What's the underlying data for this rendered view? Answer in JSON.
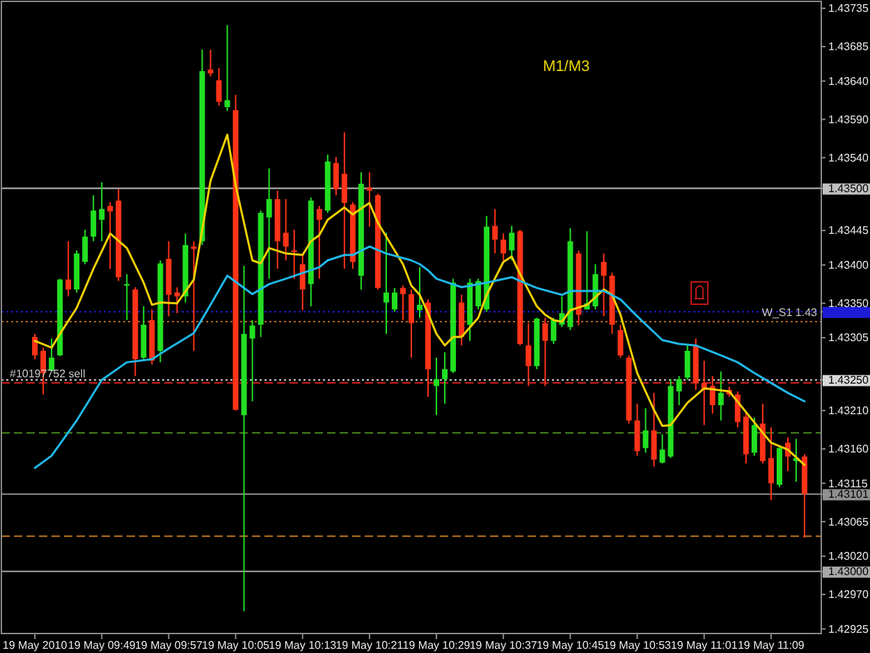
{
  "chart_data": {
    "type": "candlestick",
    "x": [
      "2010-05-19T09:41",
      "2010-05-19T09:42",
      "2010-05-19T09:43",
      "2010-05-19T09:44",
      "2010-05-19T09:45",
      "2010-05-19T09:46",
      "2010-05-19T09:47",
      "2010-05-19T09:48",
      "2010-05-19T09:49",
      "2010-05-19T09:50",
      "2010-05-19T09:51",
      "2010-05-19T09:52",
      "2010-05-19T09:53",
      "2010-05-19T09:54",
      "2010-05-19T09:55",
      "2010-05-19T09:56",
      "2010-05-19T09:57",
      "2010-05-19T09:58",
      "2010-05-19T09:59",
      "2010-05-19T10:00",
      "2010-05-19T10:01",
      "2010-05-19T10:02",
      "2010-05-19T10:03",
      "2010-05-19T10:04",
      "2010-05-19T10:05",
      "2010-05-19T10:06",
      "2010-05-19T10:07",
      "2010-05-19T10:08",
      "2010-05-19T10:09",
      "2010-05-19T10:10",
      "2010-05-19T10:11",
      "2010-05-19T10:12",
      "2010-05-19T10:13",
      "2010-05-19T10:14",
      "2010-05-19T10:15",
      "2010-05-19T10:16",
      "2010-05-19T10:17",
      "2010-05-19T10:18",
      "2010-05-19T10:19",
      "2010-05-19T10:20",
      "2010-05-19T10:21",
      "2010-05-19T10:22",
      "2010-05-19T10:23",
      "2010-05-19T10:24",
      "2010-05-19T10:25",
      "2010-05-19T10:26",
      "2010-05-19T10:27",
      "2010-05-19T10:28",
      "2010-05-19T10:29",
      "2010-05-19T10:30",
      "2010-05-19T10:31",
      "2010-05-19T10:32",
      "2010-05-19T10:33",
      "2010-05-19T10:34",
      "2010-05-19T10:35",
      "2010-05-19T10:36",
      "2010-05-19T10:37",
      "2010-05-19T10:38",
      "2010-05-19T10:39",
      "2010-05-19T10:40",
      "2010-05-19T10:41",
      "2010-05-19T10:42",
      "2010-05-19T10:43",
      "2010-05-19T10:44",
      "2010-05-19T10:45",
      "2010-05-19T10:46",
      "2010-05-19T10:47",
      "2010-05-19T10:48",
      "2010-05-19T10:49",
      "2010-05-19T10:50",
      "2010-05-19T10:51",
      "2010-05-19T10:52",
      "2010-05-19T10:53",
      "2010-05-19T10:54",
      "2010-05-19T10:55",
      "2010-05-19T10:56",
      "2010-05-19T10:57",
      "2010-05-19T10:58",
      "2010-05-19T10:59",
      "2010-05-19T11:00",
      "2010-05-19T11:01",
      "2010-05-19T11:02",
      "2010-05-19T11:03",
      "2010-05-19T11:04",
      "2010-05-19T11:05",
      "2010-05-19T11:06",
      "2010-05-19T11:07",
      "2010-05-19T11:08",
      "2010-05-19T11:09",
      "2010-05-19T11:10",
      "2010-05-19T11:11",
      "2010-05-19T11:12",
      "2010-05-19T11:13"
    ],
    "ohlc": [
      [
        1.43306,
        1.4331,
        1.43277,
        1.43282
      ],
      [
        1.43288,
        1.43292,
        1.43231,
        1.43259
      ],
      [
        1.43262,
        1.43304,
        1.43261,
        1.43279
      ],
      [
        1.43282,
        1.43382,
        1.43281,
        1.43381
      ],
      [
        1.43381,
        1.43431,
        1.43359,
        1.43368
      ],
      [
        1.43368,
        1.43419,
        1.43364,
        1.43415
      ],
      [
        1.43404,
        1.43446,
        1.43401,
        1.43437
      ],
      [
        1.43437,
        1.43491,
        1.43431,
        1.43471
      ],
      [
        1.43459,
        1.43508,
        1.43431,
        1.43473
      ],
      [
        1.43477,
        1.43482,
        1.43395,
        1.4347
      ],
      [
        1.43484,
        1.43499,
        1.43379,
        1.43384
      ],
      [
        1.43373,
        1.43388,
        1.43328,
        1.43375
      ],
      [
        1.43368,
        1.43371,
        1.43255,
        1.43277
      ],
      [
        1.43279,
        1.43346,
        1.43277,
        1.43322
      ],
      [
        1.43328,
        1.43342,
        1.4327,
        1.43275
      ],
      [
        1.43288,
        1.43406,
        1.43273,
        1.43402
      ],
      [
        1.43408,
        1.43431,
        1.43333,
        1.43361
      ],
      [
        1.43364,
        1.43371,
        1.43337,
        1.43359
      ],
      [
        1.43359,
        1.43441,
        1.43351,
        1.43426
      ],
      [
        1.43424,
        1.43431,
        1.43288,
        1.43421
      ],
      [
        1.43431,
        1.43681,
        1.43426,
        1.43653
      ],
      [
        1.43655,
        1.43681,
        1.43646,
        1.4365
      ],
      [
        1.43641,
        1.43657,
        1.43608,
        1.43613
      ],
      [
        1.43606,
        1.43713,
        1.43601,
        1.43615
      ],
      [
        1.43602,
        1.43622,
        1.4321,
        1.43211
      ],
      [
        1.43204,
        1.43399,
        1.42948,
        1.4331
      ],
      [
        1.43304,
        1.43328,
        1.43222,
        1.43321
      ],
      [
        1.43322,
        1.43471,
        1.43306,
        1.43468
      ],
      [
        1.43462,
        1.43526,
        1.43382,
        1.43486
      ],
      [
        1.43486,
        1.43497,
        1.43395,
        1.43431
      ],
      [
        1.43442,
        1.43486,
        1.43406,
        1.43424
      ],
      [
        1.43419,
        1.43446,
        1.43382,
        1.43417
      ],
      [
        1.43401,
        1.43415,
        1.43341,
        1.43368
      ],
      [
        1.43375,
        1.43488,
        1.43346,
        1.43484
      ],
      [
        1.43473,
        1.43477,
        1.43382,
        1.43459
      ],
      [
        1.43471,
        1.43544,
        1.43468,
        1.43535
      ],
      [
        1.43533,
        1.43541,
        1.43491,
        1.43499
      ],
      [
        1.43519,
        1.43573,
        1.43395,
        1.43481
      ],
      [
        1.43479,
        1.43482,
        1.43395,
        1.43404
      ],
      [
        1.43386,
        1.43521,
        1.43368,
        1.43506
      ],
      [
        1.43501,
        1.43521,
        1.4345,
        1.43497
      ],
      [
        1.43491,
        1.43493,
        1.43368,
        1.4337
      ],
      [
        1.43351,
        1.43442,
        1.4331,
        1.43364
      ],
      [
        1.43342,
        1.4337,
        1.43339,
        1.43364
      ],
      [
        1.4337,
        1.43373,
        1.43328,
        1.43362
      ],
      [
        1.43362,
        1.43368,
        1.43279,
        1.43324
      ],
      [
        1.43341,
        1.43397,
        1.43331,
        1.43348
      ],
      [
        1.43351,
        1.43355,
        1.43228,
        1.43264
      ],
      [
        1.43242,
        1.43279,
        1.43204,
        1.43251
      ],
      [
        1.43251,
        1.43286,
        1.43219,
        1.43264
      ],
      [
        1.43261,
        1.43382,
        1.43259,
        1.43377
      ],
      [
        1.43351,
        1.43361,
        1.43295,
        1.43306
      ],
      [
        1.43322,
        1.43382,
        1.43301,
        1.43377
      ],
      [
        1.43346,
        1.43382,
        1.43342,
        1.43379
      ],
      [
        1.43342,
        1.43464,
        1.43339,
        1.4345
      ],
      [
        1.43451,
        1.43473,
        1.43415,
        1.43433
      ],
      [
        1.43433,
        1.43441,
        1.43406,
        1.43415
      ],
      [
        1.43419,
        1.43451,
        1.43406,
        1.43442
      ],
      [
        1.43444,
        1.43446,
        1.43295,
        1.43297
      ],
      [
        1.43295,
        1.43324,
        1.43242,
        1.43268
      ],
      [
        1.43268,
        1.43331,
        1.43264,
        1.4333
      ],
      [
        1.43324,
        1.43331,
        1.43242,
        1.43301
      ],
      [
        1.43301,
        1.43331,
        1.43297,
        1.43328
      ],
      [
        1.43322,
        1.43359,
        1.43319,
        1.43337
      ],
      [
        1.43319,
        1.43448,
        1.43315,
        1.43431
      ],
      [
        1.43415,
        1.43419,
        1.43321,
        1.43335
      ],
      [
        1.43342,
        1.43444,
        1.43342,
        1.4335
      ],
      [
        1.43346,
        1.43401,
        1.43342,
        1.43388
      ],
      [
        1.43404,
        1.43415,
        1.43333,
        1.43386
      ],
      [
        1.43386,
        1.4339,
        1.4331,
        1.43322
      ],
      [
        1.43315,
        1.43322,
        1.43279,
        1.43282
      ],
      [
        1.43279,
        1.43282,
        1.43193,
        1.43197
      ],
      [
        1.43197,
        1.43219,
        1.43151,
        1.43157
      ],
      [
        1.43161,
        1.43213,
        1.43155,
        1.43184
      ],
      [
        1.43184,
        1.43233,
        1.43137,
        1.43146
      ],
      [
        1.43142,
        1.43179,
        1.43141,
        1.43159
      ],
      [
        1.4315,
        1.43251,
        1.43148,
        1.43242
      ],
      [
        1.43235,
        1.43255,
        1.43217,
        1.43251
      ],
      [
        1.43253,
        1.43297,
        1.4325,
        1.43288
      ],
      [
        1.43295,
        1.43304,
        1.43237,
        1.43246
      ],
      [
        1.43246,
        1.43275,
        1.43191,
        1.43237
      ],
      [
        1.43242,
        1.43255,
        1.43206,
        1.43217
      ],
      [
        1.43217,
        1.43261,
        1.43197,
        1.43233
      ],
      [
        1.43237,
        1.43241,
        1.43228,
        1.43231
      ],
      [
        1.43231,
        1.43235,
        1.43188,
        1.43195
      ],
      [
        1.43202,
        1.43208,
        1.43141,
        1.43153
      ],
      [
        1.43155,
        1.43201,
        1.43151,
        1.43191
      ],
      [
        1.43193,
        1.43219,
        1.43141,
        1.43144
      ],
      [
        1.43148,
        1.43188,
        1.43093,
        1.43115
      ],
      [
        1.43113,
        1.43164,
        1.4311,
        1.43161
      ],
      [
        1.43168,
        1.43175,
        1.43131,
        1.4315
      ],
      [
        1.43144,
        1.43173,
        1.43117,
        1.43148
      ],
      [
        1.4315,
        1.43153,
        1.43044,
        1.43101
      ]
    ],
    "colors": [
      "#ff3318",
      "#ff3318",
      "#22e022",
      "#22e022",
      "#ff3318",
      "#22e022",
      "#22e022",
      "#22e022",
      "#22e022",
      "#ff3318",
      "#ff3318",
      "#22e022",
      "#ff3318",
      "#22e022",
      "#ff3318",
      "#22e022",
      "#ff3318",
      "#ff3318",
      "#22e022",
      "#ff3318",
      "#22e022",
      "#ff3318",
      "#ff3318",
      "#22e022",
      "#ff3318",
      "#22e022",
      "#22e022",
      "#22e022",
      "#22e022",
      "#ff3318",
      "#ff3318",
      "#ff3318",
      "#ff3318",
      "#22e022",
      "#ff3318",
      "#22e022",
      "#ff3318",
      "#ff3318",
      "#ff3318",
      "#22e022",
      "#ff3318",
      "#ff3318",
      "#22e022",
      "#22e022",
      "#ff3318",
      "#ff3318",
      "#22e022",
      "#ff3318",
      "#22e022",
      "#22e022",
      "#22e022",
      "#ff3318",
      "#22e022",
      "#22e022",
      "#22e022",
      "#ff3318",
      "#ff3318",
      "#22e022",
      "#ff3318",
      "#ff3318",
      "#22e022",
      "#ff3318",
      "#22e022",
      "#22e022",
      "#22e022",
      "#ff3318",
      "#22e022",
      "#22e022",
      "#ff3318",
      "#ff3318",
      "#ff3318",
      "#ff3318",
      "#ff3318",
      "#22e022",
      "#ff3318",
      "#22e022",
      "#22e022",
      "#22e022",
      "#22e022",
      "#ff3318",
      "#ff3318",
      "#ff3318",
      "#22e022",
      "#ff3318",
      "#ff3318",
      "#ff3318",
      "#22e022",
      "#ff3318",
      "#ff3318",
      "#22e022",
      "#ff3318",
      "#22e022",
      "#ff3318"
    ],
    "series": [
      {
        "type": "line",
        "color": "#f0d000",
        "x": [
          "2010-05-19T09:41",
          "2010-05-19T09:43",
          "2010-05-19T09:44",
          "2010-05-19T09:46",
          "2010-05-19T09:48",
          "2010-05-19T09:50",
          "2010-05-19T09:52",
          "2010-05-19T09:54",
          "2010-05-19T09:55",
          "2010-05-19T09:56",
          "2010-05-19T09:58",
          "2010-05-19T10:00",
          "2010-05-19T10:02",
          "2010-05-19T10:04",
          "2010-05-19T10:05",
          "2010-05-19T10:07",
          "2010-05-19T10:08",
          "2010-05-19T10:09",
          "2010-05-19T10:11",
          "2010-05-19T10:13",
          "2010-05-19T10:14",
          "2010-05-19T10:15",
          "2010-05-19T10:16",
          "2010-05-19T10:18",
          "2010-05-19T10:19",
          "2010-05-19T10:21",
          "2010-05-19T10:22",
          "2010-05-19T10:24",
          "2010-05-19T10:25",
          "2010-05-19T10:26",
          "2010-05-19T10:27",
          "2010-05-19T10:28",
          "2010-05-19T10:29",
          "2010-05-19T10:30",
          "2010-05-19T10:31",
          "2010-05-19T10:32",
          "2010-05-19T10:34",
          "2010-05-19T10:35",
          "2010-05-19T10:37",
          "2010-05-19T10:38",
          "2010-05-19T10:39",
          "2010-05-19T10:41",
          "2010-05-19T10:42",
          "2010-05-19T10:43",
          "2010-05-19T10:44",
          "2010-05-19T10:45",
          "2010-05-19T10:47",
          "2010-05-19T10:49",
          "2010-05-19T10:50",
          "2010-05-19T10:51",
          "2010-05-19T10:53",
          "2010-05-19T10:55",
          "2010-05-19T10:56",
          "2010-05-19T10:57",
          "2010-05-19T10:59",
          "2010-05-19T11:01",
          "2010-05-19T11:04",
          "2010-05-19T11:06",
          "2010-05-19T11:08",
          "2010-05-19T11:09",
          "2010-05-19T11:11",
          "2010-05-19T11:13"
        ],
        "values": [
          1.43301,
          1.43292,
          1.4331,
          1.43344,
          1.43395,
          1.43441,
          1.43422,
          1.43377,
          1.43348,
          1.43351,
          1.4335,
          1.43381,
          1.4351,
          1.4357,
          1.43504,
          1.43406,
          1.43402,
          1.43422,
          1.43415,
          1.43413,
          1.43431,
          1.43439,
          1.43459,
          1.43475,
          1.43466,
          1.43481,
          1.43455,
          1.43419,
          1.43401,
          1.43373,
          1.43361,
          1.43337,
          1.4331,
          1.43295,
          1.43306,
          1.43306,
          1.43331,
          1.43361,
          1.43404,
          1.43411,
          1.43388,
          1.43346,
          1.43335,
          1.43328,
          1.43326,
          1.43341,
          1.43348,
          1.43368,
          1.43361,
          1.43335,
          1.43259,
          1.43211,
          1.4319,
          1.43191,
          1.4322,
          1.43239,
          1.43235,
          1.43208,
          1.43181,
          1.43168,
          1.43159,
          1.43139
        ]
      },
      {
        "type": "line",
        "color": "#20b8e8",
        "x": [
          "2010-05-19T09:41",
          "2010-05-19T09:43",
          "2010-05-19T09:46",
          "2010-05-19T09:49",
          "2010-05-19T09:52",
          "2010-05-19T09:55",
          "2010-05-19T09:57",
          "2010-05-19T10:00",
          "2010-05-19T10:02",
          "2010-05-19T10:04",
          "2010-05-19T10:07",
          "2010-05-19T10:09",
          "2010-05-19T10:11",
          "2010-05-19T10:15",
          "2010-05-19T10:16",
          "2010-05-19T10:18",
          "2010-05-19T10:19",
          "2010-05-19T10:21",
          "2010-05-19T10:23",
          "2010-05-19T10:26",
          "2010-05-19T10:27",
          "2010-05-19T10:28",
          "2010-05-19T10:29",
          "2010-05-19T10:32",
          "2010-05-19T10:35",
          "2010-05-19T10:38",
          "2010-05-19T10:39",
          "2010-05-19T10:41",
          "2010-05-19T10:44",
          "2010-05-19T10:45",
          "2010-05-19T10:49",
          "2010-05-19T10:51",
          "2010-05-19T10:53",
          "2010-05-19T10:56",
          "2010-05-19T10:58",
          "2010-05-19T11:00",
          "2010-05-19T11:03",
          "2010-05-19T11:05",
          "2010-05-19T11:07",
          "2010-05-19T11:09",
          "2010-05-19T11:11",
          "2010-05-19T11:13"
        ],
        "values": [
          1.43135,
          1.43151,
          1.43197,
          1.4325,
          1.43273,
          1.43277,
          1.43291,
          1.43311,
          1.43348,
          1.43386,
          1.43362,
          1.43375,
          1.43382,
          1.43397,
          1.43406,
          1.43413,
          1.43413,
          1.43424,
          1.43415,
          1.43406,
          1.43401,
          1.43393,
          1.43382,
          1.43371,
          1.43377,
          1.43384,
          1.43379,
          1.4337,
          1.43361,
          1.43366,
          1.43366,
          1.43355,
          1.43333,
          1.43302,
          1.43297,
          1.43295,
          1.43282,
          1.43273,
          1.43259,
          1.43246,
          1.43233,
          1.43222
        ]
      }
    ],
    "xlim": [
      "2010-05-19T09:37",
      "2010-05-19T11:15"
    ],
    "xticks": [
      {
        "value": "2010-05-19T09:41",
        "label": "19 May 2010"
      },
      {
        "value": "2010-05-19T09:49",
        "label": "19 May 09:49"
      },
      {
        "value": "2010-05-19T09:57",
        "label": "19 May 09:57"
      },
      {
        "value": "2010-05-19T10:05",
        "label": "19 May 10:05"
      },
      {
        "value": "2010-05-19T10:13",
        "label": "19 May 10:13"
      },
      {
        "value": "2010-05-19T10:21",
        "label": "19 May 10:21"
      },
      {
        "value": "2010-05-19T10:29",
        "label": "19 May 10:29"
      },
      {
        "value": "2010-05-19T10:37",
        "label": "19 May 10:37"
      },
      {
        "value": "2010-05-19T10:45",
        "label": "19 May 10:45"
      },
      {
        "value": "2010-05-19T10:53",
        "label": "19 May 10:53"
      },
      {
        "value": "2010-05-19T11:01",
        "label": "19 May 11:01"
      },
      {
        "value": "2010-05-19T11:09",
        "label": "19 May 11:09"
      }
    ],
    "ylim": [
      1.42919,
      1.43744
    ],
    "yticks": [
      1.43735,
      1.43685,
      {
        "value": 1.4364,
        "label": "1.43640"
      },
      {
        "value": 1.4359,
        "label": "1.43590"
      },
      {
        "value": 1.4354,
        "label": "1.43540"
      },
      {
        "value": 1.435,
        "label": "1.43500"
      },
      1.43445,
      {
        "value": 1.434,
        "label": "1.43400"
      },
      {
        "value": 1.4335,
        "label": "1.43350"
      },
      {
        "value": 1.43339,
        "label": null
      },
      1.43305,
      {
        "value": 1.4325,
        "label": "1.43250"
      },
      {
        "value": 1.4321,
        "label": "1.43210"
      },
      {
        "value": 1.4316,
        "label": "1.43160"
      },
      1.43115,
      1.43101,
      1.43065,
      {
        "value": 1.4302,
        "label": "1.43020"
      },
      {
        "value": 1.43,
        "label": "1.43000"
      },
      {
        "value": 1.4297,
        "label": "1.42970"
      },
      1.42925
    ],
    "ref_lines": [
      {
        "axis": "y",
        "value": 1.435,
        "color": "#c0c0c0",
        "line_style": "solid"
      },
      {
        "axis": "y",
        "value": 1.43339,
        "color": "#1c1cd8",
        "line_style": "dotted"
      },
      {
        "axis": "y",
        "value": 1.43326,
        "label": "W_S1 1.43",
        "color": "#b86818",
        "line_style": "dotted"
      },
      {
        "axis": "y",
        "value": 1.4325,
        "color": "#d8d8d8",
        "line_style": "dotted"
      },
      {
        "axis": "y",
        "value": 1.43246,
        "label": "#10197752 sell",
        "color": "#d02020",
        "line_style": "dashed"
      },
      {
        "axis": "y",
        "value": 1.43181,
        "color": "#4a8a20",
        "line_style": "dashed"
      },
      {
        "axis": "y",
        "value": 1.43101,
        "color": "#909090",
        "line_style": "solid"
      },
      {
        "axis": "y",
        "value": 1.43046,
        "color": "#c07820",
        "line_style": "dashed"
      },
      {
        "axis": "y",
        "value": 1.43,
        "color": "#a8a8a8",
        "line_style": "solid"
      }
    ],
    "annotations": [
      "M1/M3"
    ]
  }
}
